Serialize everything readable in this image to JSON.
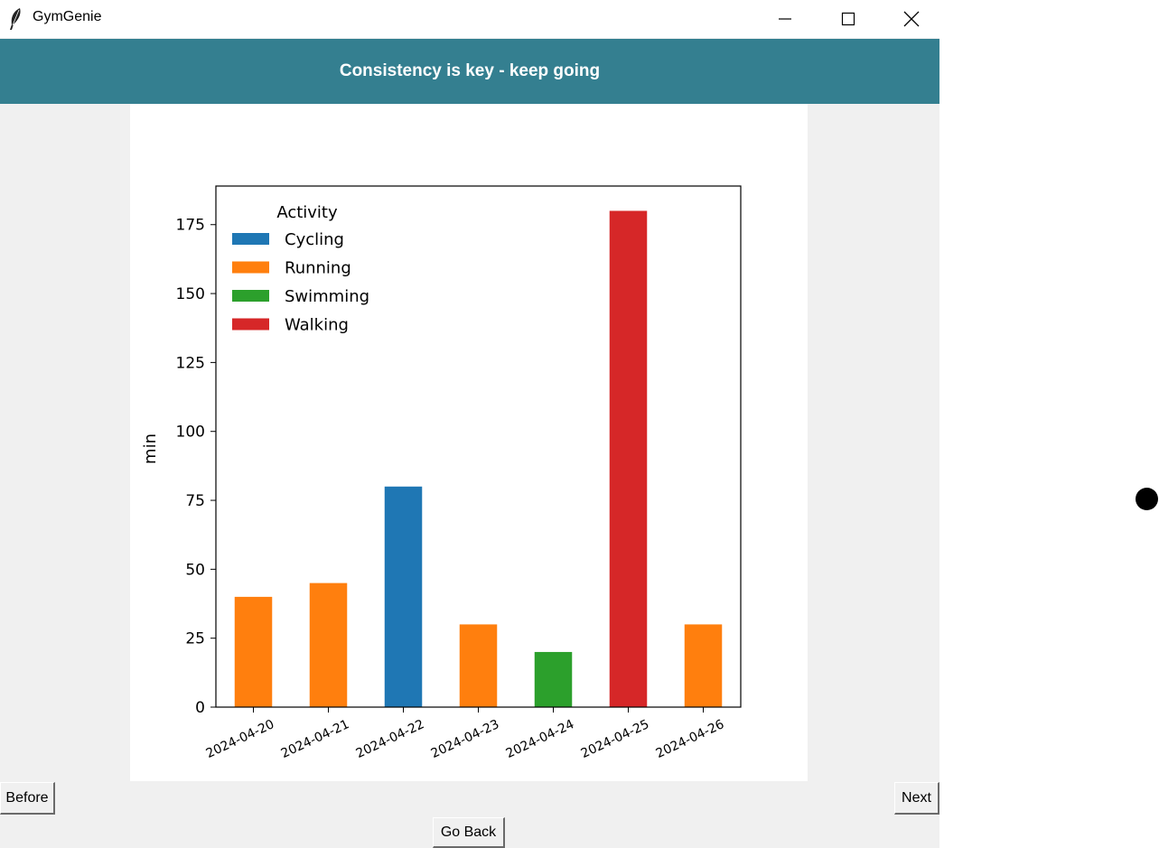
{
  "window": {
    "title": "GymGenie",
    "icons": {
      "app": "feather-icon",
      "minimize": "minimize-icon",
      "maximize": "maximize-icon",
      "close": "close-icon"
    }
  },
  "banner": {
    "text": "Consistency is key - keep going",
    "background": "#347f90"
  },
  "buttons": {
    "before": "Before",
    "next": "Next",
    "go_back": "Go Back"
  },
  "chart_data": {
    "type": "bar",
    "categories": [
      "2024-04-20",
      "2024-04-21",
      "2024-04-22",
      "2024-04-23",
      "2024-04-24",
      "2024-04-25",
      "2024-04-26"
    ],
    "values": [
      40,
      45,
      80,
      30,
      20,
      180,
      30
    ],
    "activities": [
      "Running",
      "Running",
      "Cycling",
      "Running",
      "Swimming",
      "Walking",
      "Running"
    ],
    "ylabel": "min",
    "ylim": [
      0,
      189
    ],
    "yticks": [
      0,
      25,
      50,
      75,
      100,
      125,
      150,
      175
    ],
    "legend": {
      "title": "Activity",
      "placement": "upper-left",
      "entries": [
        {
          "name": "Cycling",
          "color": "#1f77b4"
        },
        {
          "name": "Running",
          "color": "#ff7f0e"
        },
        {
          "name": "Swimming",
          "color": "#2ca02c"
        },
        {
          "name": "Walking",
          "color": "#d62728"
        }
      ]
    },
    "grid": false
  }
}
